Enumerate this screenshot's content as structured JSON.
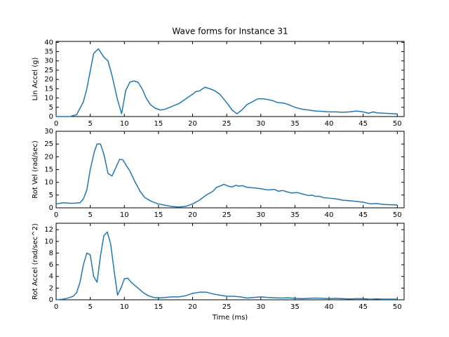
{
  "chart_data": [
    {
      "type": "line",
      "title": "Wave forms for Instance 31",
      "ylabel": "Lin Accel (g)",
      "color": "#1f77b4",
      "xlim": [
        0,
        51
      ],
      "xticks": [
        0,
        5,
        10,
        15,
        20,
        25,
        30,
        35,
        40,
        45,
        50
      ],
      "ylim": [
        0,
        40.5
      ],
      "yticks": [
        0,
        5,
        10,
        15,
        20,
        25,
        30,
        35,
        40
      ],
      "x": [
        0,
        2,
        3,
        4,
        4.5,
        5.5,
        6.2,
        7,
        7.6,
        8.2,
        9,
        9.6,
        10.2,
        10.8,
        11.4,
        12,
        12.6,
        13.2,
        13.8,
        14.5,
        15.3,
        16,
        17,
        18,
        19,
        20,
        20.5,
        21,
        21.8,
        22.5,
        23.2,
        24,
        25,
        25.8,
        26.5,
        27.2,
        28,
        28.8,
        29.5,
        30.2,
        31,
        31.8,
        32.5,
        33.3,
        34,
        35,
        36,
        37,
        38,
        39,
        40,
        41,
        42,
        43,
        44,
        45,
        45.8,
        46.5,
        47,
        48,
        49,
        50
      ],
      "values": [
        0,
        0,
        1,
        8,
        15,
        34,
        36.5,
        32,
        30,
        22,
        9,
        1.5,
        14,
        18.5,
        19.2,
        18.5,
        15,
        10,
        6.5,
        4.5,
        3.5,
        4,
        5.5,
        7,
        9.5,
        12,
        13.5,
        13.8,
        15.8,
        15,
        14,
        12,
        7.5,
        3.5,
        1.5,
        3.5,
        6.5,
        8,
        9.5,
        9.6,
        9.2,
        8.5,
        7.5,
        7.3,
        6.5,
        5,
        4,
        3.5,
        3,
        2.8,
        2.5,
        2.5,
        2.3,
        2.5,
        3,
        2.5,
        1.8,
        2.5,
        2,
        1.8,
        1.6,
        1.4
      ]
    },
    {
      "type": "line",
      "ylabel": "Rot Vel (rad/sec)",
      "color": "#1f77b4",
      "xlim": [
        0,
        51
      ],
      "xticks": [
        0,
        5,
        10,
        15,
        20,
        25,
        30,
        35,
        40,
        45,
        50
      ],
      "ylim": [
        0,
        30
      ],
      "yticks": [
        0,
        5,
        10,
        15,
        20,
        25,
        30
      ],
      "x": [
        0,
        1,
        2,
        2.6,
        3.5,
        4,
        4.5,
        5,
        5.6,
        6,
        6.5,
        7,
        7.6,
        8.2,
        8.8,
        9.3,
        9.8,
        10.3,
        10.8,
        11.5,
        12.3,
        13,
        14,
        15,
        16,
        17,
        18,
        19,
        20,
        21,
        22,
        23,
        23.5,
        24,
        24.6,
        25.2,
        25.8,
        26.3,
        26.8,
        27.3,
        28,
        29,
        30,
        31,
        32,
        32.6,
        33.2,
        33.8,
        34.5,
        35.3,
        36,
        37,
        37.5,
        38,
        38.6,
        39.2,
        40,
        41,
        42,
        43,
        44,
        45,
        46,
        47,
        48,
        49,
        50
      ],
      "values": [
        1.5,
        2,
        1.8,
        1.8,
        2,
        3.5,
        7,
        15,
        22,
        25,
        25,
        21,
        13.5,
        12.5,
        16,
        19,
        18.8,
        16.5,
        14.5,
        10.5,
        6.5,
        4,
        2.5,
        1.5,
        1,
        0.5,
        0.3,
        0.6,
        1.5,
        3,
        5,
        6.5,
        8,
        8.5,
        9.2,
        8.5,
        8.2,
        8.8,
        8.5,
        8.7,
        8,
        7.8,
        7.5,
        7,
        7.2,
        6.5,
        6.8,
        6.3,
        5.8,
        6,
        5.5,
        4.8,
        5,
        4.5,
        4.5,
        4,
        3.8,
        3.5,
        3,
        2.8,
        2.5,
        2.2,
        1.6,
        1.7,
        1.3,
        1.2,
        1.1
      ]
    },
    {
      "type": "line",
      "ylabel": "Rot Accel (rad/sec^2)",
      "xlabel": "Time (ms)",
      "color": "#1f77b4",
      "xlim": [
        0,
        51
      ],
      "xticks": [
        0,
        5,
        10,
        15,
        20,
        25,
        30,
        35,
        40,
        45,
        50
      ],
      "ylim": [
        0,
        13.1
      ],
      "yticks": [
        0,
        2,
        4,
        6,
        8,
        10,
        12
      ],
      "x": [
        0,
        1,
        2,
        2.5,
        3,
        3.5,
        4,
        4.5,
        5,
        5.5,
        6,
        6.5,
        7,
        7.5,
        8,
        8.5,
        9,
        9.5,
        10,
        10.5,
        11,
        12,
        12.8,
        13.5,
        14.3,
        15,
        16,
        17,
        18,
        19,
        20,
        21,
        22,
        23,
        24,
        25,
        26,
        27,
        28,
        29,
        30,
        31,
        32,
        33,
        34,
        35,
        36,
        37,
        38,
        39,
        40,
        41,
        42,
        43,
        44,
        45,
        46,
        47,
        48,
        49,
        50
      ],
      "values": [
        0,
        0.1,
        0.4,
        0.6,
        1.2,
        3,
        6,
        8,
        7.7,
        4,
        3,
        7.5,
        11,
        11.6,
        9.5,
        5,
        0.8,
        2,
        3.6,
        3.7,
        3,
        2,
        1.2,
        0.7,
        0.4,
        0.3,
        0.4,
        0.5,
        0.5,
        0.7,
        1.1,
        1.3,
        1.3,
        1,
        0.8,
        0.6,
        0.6,
        0.5,
        0.3,
        0.4,
        0.5,
        0.4,
        0.35,
        0.3,
        0.35,
        0.25,
        0.2,
        0.25,
        0.3,
        0.25,
        0.2,
        0.25,
        0.2,
        0.15,
        0.2,
        0.2,
        0.1,
        0.15,
        0.1,
        0.12,
        0.1
      ]
    }
  ]
}
